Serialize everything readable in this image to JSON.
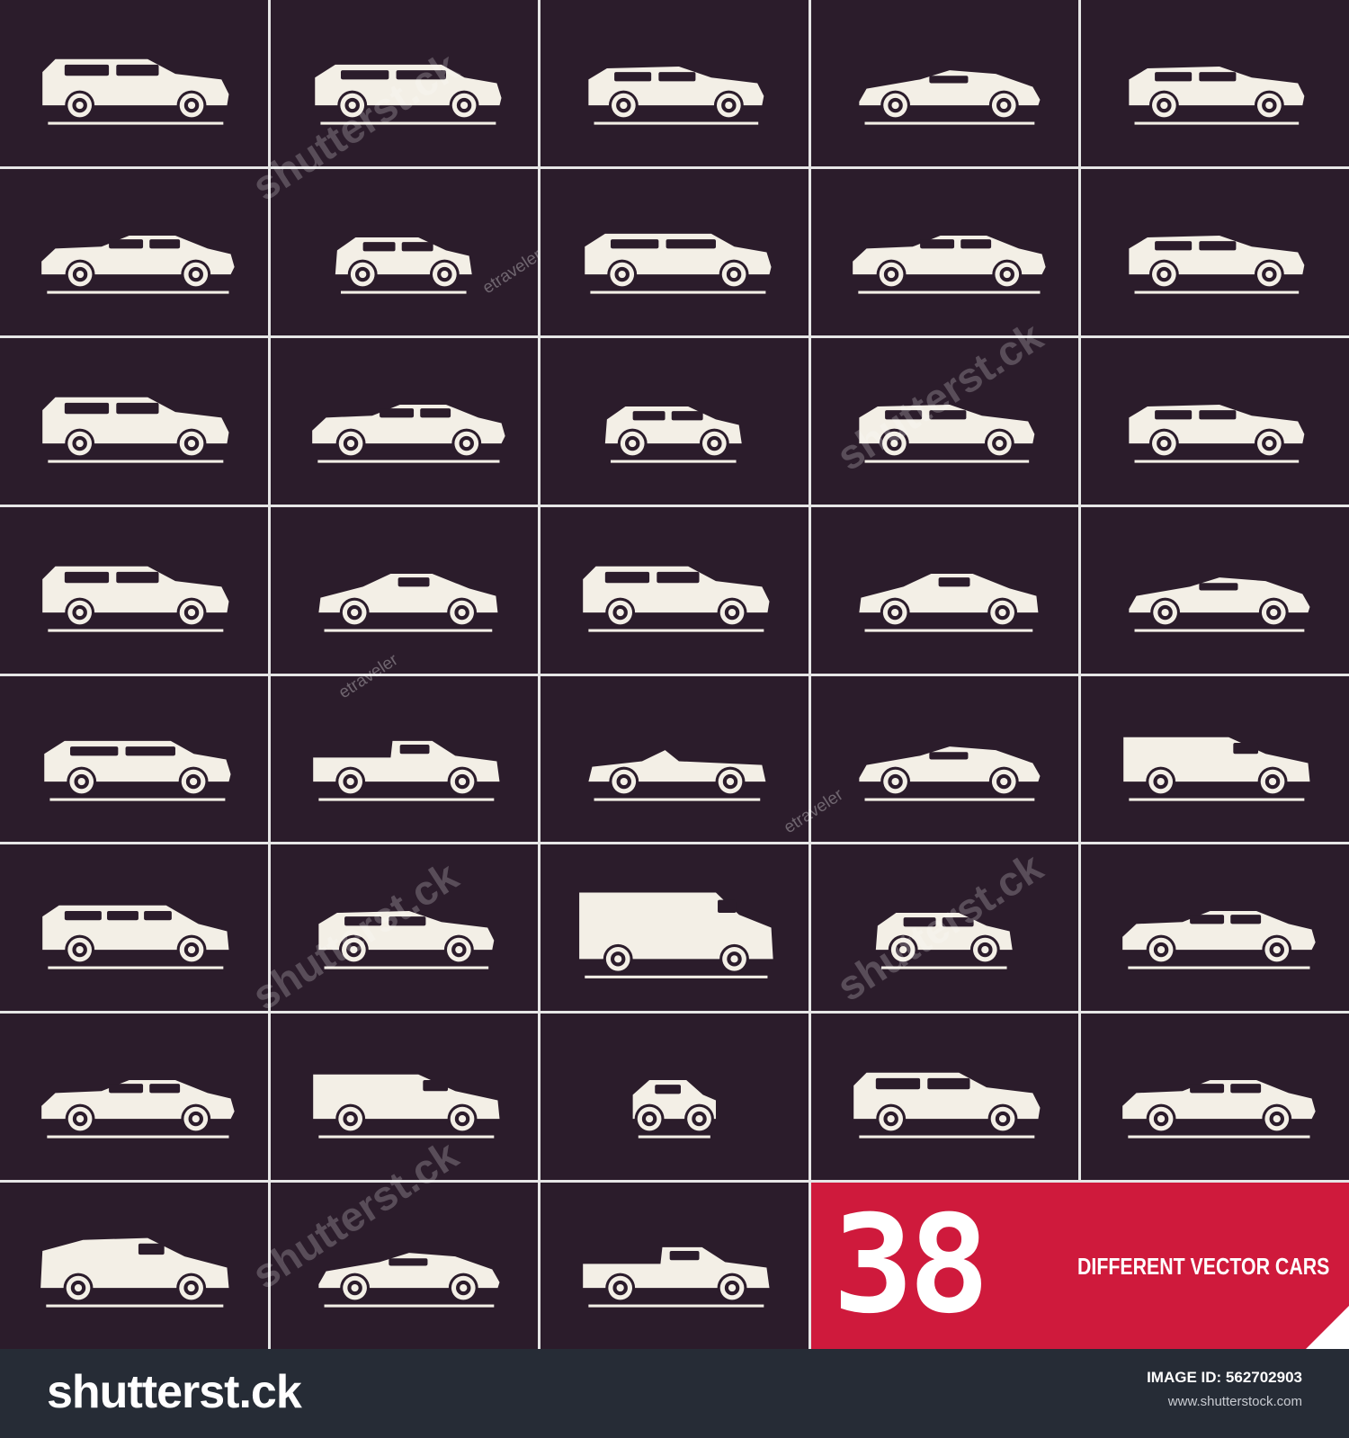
{
  "colors": {
    "tile_background": "#2b1c2b",
    "car_silhouette": "#f3efe6",
    "grid_lines": "#e6e6e6",
    "promo_background": "#cf1a3c",
    "footer_background": "#262c36"
  },
  "cars": [
    {
      "type": "suv",
      "icon": "suv-car-icon"
    },
    {
      "type": "wagon",
      "icon": "wagon-car-icon"
    },
    {
      "type": "hatchback",
      "icon": "hatchback-car-icon"
    },
    {
      "type": "sports",
      "icon": "sports-car-icon"
    },
    {
      "type": "hatchback",
      "icon": "hatchback-car-icon"
    },
    {
      "type": "sedan",
      "icon": "sedan-car-icon"
    },
    {
      "type": "compact",
      "icon": "compact-car-icon"
    },
    {
      "type": "wagon",
      "icon": "wagon-car-icon"
    },
    {
      "type": "sedan",
      "icon": "sedan-car-icon"
    },
    {
      "type": "hatchback",
      "icon": "hatchback-car-icon"
    },
    {
      "type": "suv",
      "icon": "suv-car-icon"
    },
    {
      "type": "sedan",
      "icon": "sedan-car-icon"
    },
    {
      "type": "compact",
      "icon": "compact-car-icon"
    },
    {
      "type": "hatchback",
      "icon": "hatchback-car-icon"
    },
    {
      "type": "hatchback",
      "icon": "hatchback-car-icon"
    },
    {
      "type": "suv",
      "icon": "suv-car-icon"
    },
    {
      "type": "coupe",
      "icon": "coupe-car-icon"
    },
    {
      "type": "suv",
      "icon": "suv-car-icon"
    },
    {
      "type": "coupe",
      "icon": "coupe-car-icon"
    },
    {
      "type": "sports",
      "icon": "sports-car-icon"
    },
    {
      "type": "wagon",
      "icon": "wagon-car-icon"
    },
    {
      "type": "pickup",
      "icon": "pickup-truck-icon"
    },
    {
      "type": "convertible",
      "icon": "convertible-car-icon"
    },
    {
      "type": "sports",
      "icon": "sports-car-icon"
    },
    {
      "type": "van",
      "icon": "van-icon"
    },
    {
      "type": "minivan",
      "icon": "minivan-icon"
    },
    {
      "type": "hatchback",
      "icon": "hatchback-car-icon"
    },
    {
      "type": "cargo-van",
      "icon": "cargo-van-icon"
    },
    {
      "type": "compact",
      "icon": "compact-car-icon"
    },
    {
      "type": "sedan",
      "icon": "sedan-car-icon"
    },
    {
      "type": "sedan",
      "icon": "sedan-car-icon"
    },
    {
      "type": "van",
      "icon": "van-icon"
    },
    {
      "type": "micro",
      "icon": "micro-car-icon"
    },
    {
      "type": "suv",
      "icon": "suv-car-icon"
    },
    {
      "type": "sedan",
      "icon": "sedan-car-icon"
    },
    {
      "type": "panel-van",
      "icon": "panel-van-icon"
    },
    {
      "type": "sports",
      "icon": "sports-car-icon"
    },
    {
      "type": "pickup",
      "icon": "pickup-truck-icon"
    }
  ],
  "promo": {
    "number": "38",
    "text": "DIFFERENT VECTOR CARS"
  },
  "watermarks": {
    "big": "shutterst.ck",
    "small": "etraveler"
  },
  "footer": {
    "logo": "shutterst.ck",
    "image_id": "IMAGE ID: 562702903",
    "url": "www.shutterstock.com"
  }
}
